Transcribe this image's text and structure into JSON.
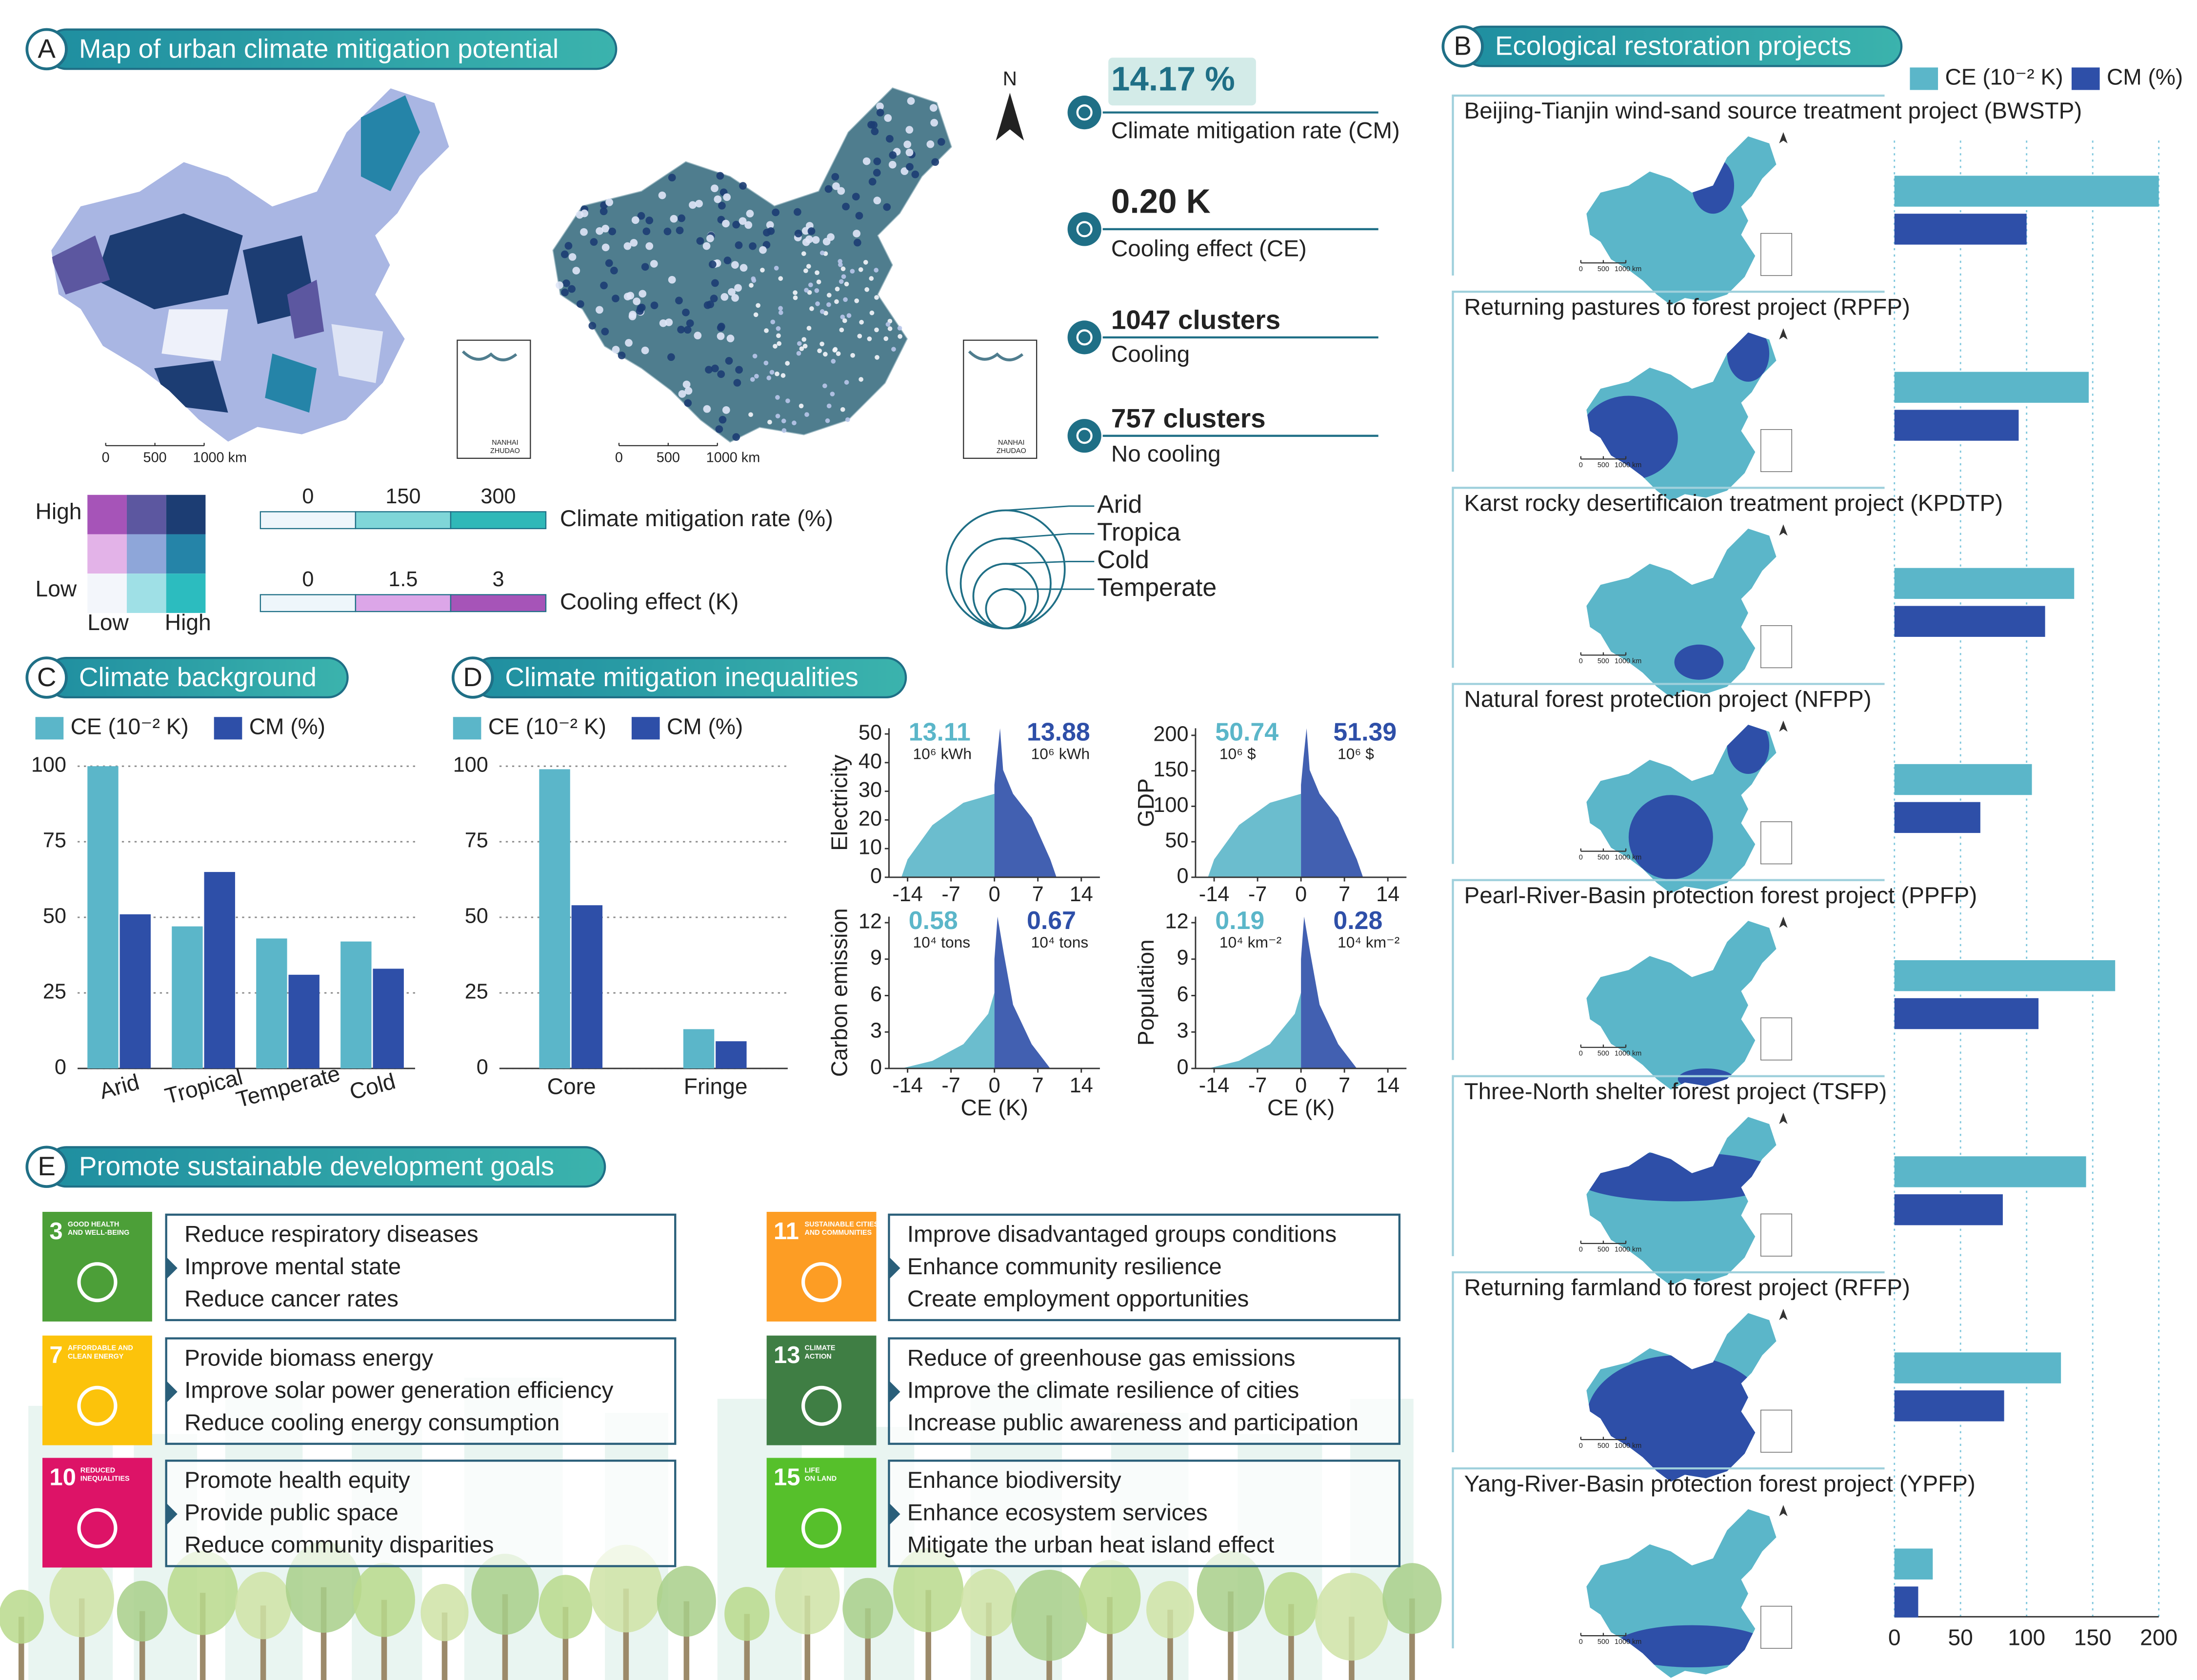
{
  "panel_a": {
    "letter": "A",
    "title": "Map of urban climate mitigation potential",
    "north": "N",
    "scale_ticks": [
      0,
      500,
      {
        "value": 1000,
        "label": "1000 km"
      }
    ],
    "inset_labels": [
      "NANHAI",
      "ZHUDAO"
    ],
    "stats": [
      {
        "value": "14.17 %",
        "label": "Climate mitigation rate (CM)"
      },
      {
        "value": "0.20 K",
        "label": "Cooling effect (CE)"
      },
      {
        "value": "1047 clusters",
        "label": "Cooling"
      },
      {
        "value": "757 clusters",
        "label": "No cooling"
      }
    ],
    "bivariate_legend": {
      "y_labels": [
        "High",
        "Low"
      ],
      "x_labels": [
        "Low",
        "High"
      ],
      "colors": [
        [
          "#a654b8",
          "#5c57a0",
          "#1c3d73"
        ],
        [
          "#e3b3e8",
          "#8ea6d9",
          "#2584a8"
        ],
        [
          "#f3f6fb",
          "#9fe0e6",
          "#2cbcbf"
        ]
      ]
    },
    "cm_legend": {
      "title": "Climate mitigation rate (%)",
      "ticks": [
        0,
        150,
        300
      ],
      "colors": [
        "#eef6fb",
        "#7fd6d8",
        "#2fb8b8"
      ]
    },
    "ce_legend": {
      "title": "Cooling effect (K)",
      "ticks": [
        0,
        1.5,
        3
      ],
      "colors": [
        "#eef6fb",
        "#dca6e8",
        "#a654b8"
      ]
    },
    "climate_zones": [
      "Arid",
      "Tropica",
      "Cold",
      "Temperate"
    ]
  },
  "panel_b": {
    "letter": "B",
    "title": "Ecological restoration projects",
    "type": "bar",
    "orientation": "horizontal",
    "categories": [
      "Beijing-Tianjin wind-sand source treatment project (BWSTP)",
      "Returning pastures to forest project (RPFP)",
      "Karst rocky desertificaion treatment project (KPDTP)",
      "Natural forest protection project (NFPP)",
      "Pearl-River-Basin protection forest project (PPFP)",
      "Three-North shelter forest project (TSFP)",
      "Returning farmland to forest project (RFFP)",
      "Yang-River-Basin protection forest project (YPFP)"
    ],
    "series": [
      {
        "name": "CE (10⁻² K)",
        "color": "#5bb6c9",
        "values": [
          200,
          147,
          136,
          104,
          167,
          145,
          126,
          29
        ]
      },
      {
        "name": "CM (%)",
        "color": "#2e4fa8",
        "values": [
          100,
          94,
          114,
          65,
          109,
          82,
          83,
          18
        ]
      }
    ],
    "xlim": [
      0,
      200
    ],
    "xticks": [
      0,
      50,
      100,
      150,
      200
    ],
    "grid": true
  },
  "panel_c": {
    "letter": "C",
    "title": "Climate background",
    "type": "bar",
    "categories": [
      "Arid",
      "Tropical",
      "Temperate",
      "Cold"
    ],
    "series": [
      {
        "name": "CE (10⁻² K)",
        "color": "#5bb6c9",
        "values": [
          100,
          47,
          43,
          42
        ]
      },
      {
        "name": "CM (%)",
        "color": "#2e4fa8",
        "values": [
          51,
          65,
          31,
          33
        ]
      }
    ],
    "ylim": [
      0,
      100
    ],
    "yticks": [
      0,
      25,
      50,
      75,
      100
    ],
    "grid": true
  },
  "panel_d": {
    "letter": "D",
    "title": "Climate mitigation inequalities",
    "bars": {
      "type": "bar",
      "categories": [
        "Core",
        "Fringe"
      ],
      "series": [
        {
          "name": "CE (10⁻² K)",
          "color": "#5bb6c9",
          "values": [
            99,
            13
          ]
        },
        {
          "name": "CM (%)",
          "color": "#2e4fa8",
          "values": [
            54,
            9
          ]
        }
      ],
      "ylim": [
        0,
        100
      ],
      "yticks": [
        0,
        25,
        50,
        75,
        100
      ],
      "grid": true
    },
    "scatters": [
      {
        "type": "scatter",
        "ylabel": "Electricity",
        "xlim": [
          -17,
          17
        ],
        "xticks": [
          -14,
          -7,
          0,
          7,
          14
        ],
        "ylim": [
          0,
          52
        ],
        "yticks": [
          0,
          10,
          20,
          30,
          40,
          50
        ],
        "annotations": [
          {
            "value": 13.11,
            "unit": "10⁶ kWh"
          },
          {
            "value": 13.88,
            "unit": "10⁶ kWh"
          }
        ]
      },
      {
        "type": "scatter",
        "ylabel": "GDP",
        "xlim": [
          -17,
          17
        ],
        "xticks": [
          -14,
          -7,
          0,
          7,
          14
        ],
        "ylim": [
          0,
          210
        ],
        "yticks": [
          0,
          50,
          100,
          150,
          200
        ],
        "annotations": [
          {
            "value": 50.74,
            "unit": "10⁶ $"
          },
          {
            "value": 51.39,
            "unit": "10⁶ $"
          }
        ]
      },
      {
        "type": "scatter",
        "ylabel": "Carbon emission",
        "xlabel": "CE (K)",
        "xlim": [
          -17,
          17
        ],
        "xticks": [
          -14,
          -7,
          0,
          7,
          14
        ],
        "ylim": [
          0,
          12.5
        ],
        "yticks": [
          0,
          3,
          6,
          9,
          12
        ],
        "annotations": [
          {
            "value": 0.58,
            "unit": "10⁴ tons"
          },
          {
            "value": 0.67,
            "unit": "10⁴ tons"
          }
        ]
      },
      {
        "type": "scatter",
        "ylabel": "Population",
        "xlabel": "CE (K)",
        "xlim": [
          -17,
          17
        ],
        "xticks": [
          -14,
          -7,
          0,
          7,
          14
        ],
        "ylim": [
          0,
          12.5
        ],
        "yticks": [
          0,
          3,
          6,
          9,
          12
        ],
        "annotations": [
          {
            "value": 0.19,
            "unit": "10⁴ km⁻²"
          },
          {
            "value": 0.28,
            "unit": "10⁴ km⁻²"
          }
        ]
      }
    ]
  },
  "panel_e": {
    "letter": "E",
    "title": "Promote sustainable development goals",
    "goals": [
      {
        "number": 3,
        "name_lines": [
          "GOOD HEALTH",
          "AND WELL-BEING"
        ],
        "color": "#4c9f38",
        "actions": [
          "Reduce respiratory diseases",
          "Improve mental state",
          "Reduce cancer rates"
        ]
      },
      {
        "number": 7,
        "name_lines": [
          "AFFORDABLE AND",
          "CLEAN ENERGY"
        ],
        "color": "#fcc30b",
        "actions": [
          "Provide biomass energy",
          "Improve solar power generation efficiency",
          "Reduce cooling energy consumption"
        ]
      },
      {
        "number": 10,
        "name_lines": [
          "REDUCED",
          "INEQUALITIES"
        ],
        "color": "#dd1367",
        "actions": [
          "Promote health equity",
          "Provide public space",
          "Reduce community disparities"
        ]
      },
      {
        "number": 11,
        "name_lines": [
          "SUSTAINABLE CITIES",
          "AND COMMUNITIES"
        ],
        "color": "#fd9d24",
        "actions": [
          "Improve disadvantaged groups conditions",
          "Enhance community resilience",
          "Create employment opportunities"
        ]
      },
      {
        "number": 13,
        "name_lines": [
          "CLIMATE",
          "ACTION"
        ],
        "color": "#3f7e44",
        "actions": [
          "Reduce of greenhouse gas emissions",
          "Improve the climate resilience of cities",
          "Increase public awareness and participation"
        ]
      },
      {
        "number": 15,
        "name_lines": [
          "LIFE",
          "ON LAND"
        ],
        "color": "#56c02b",
        "actions": [
          "Enhance biodiversity",
          "Enhance ecosystem services",
          "Mitigate the urban heat island effect"
        ]
      }
    ]
  }
}
